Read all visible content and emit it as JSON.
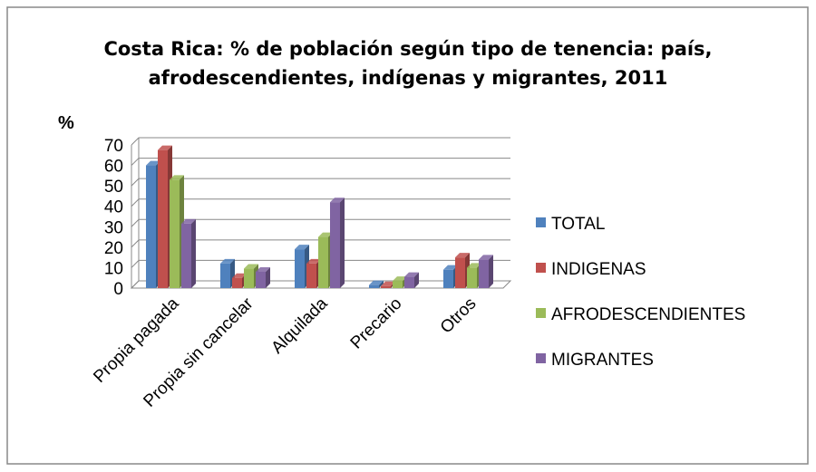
{
  "chart_data": {
    "type": "bar",
    "title": "Costa Rica: % de población según tipo de tenencia: país, afrodescendientes, indígenas y migrantes, 2011",
    "y_label": "%",
    "categories": [
      "Propia pagada",
      "Propia sin cancelar",
      "Alquilada",
      "Precario",
      "Otros"
    ],
    "series": [
      {
        "name": "TOTAL",
        "color": "#4f81bd",
        "values": [
          60,
          12,
          19,
          1.5,
          9
        ]
      },
      {
        "name": "INDIGENAS",
        "color": "#c0504d",
        "values": [
          67.5,
          5,
          12,
          1,
          15
        ]
      },
      {
        "name": "AFRODESCENDIENTES",
        "color": "#9bbb59",
        "values": [
          53,
          9.5,
          25,
          3.5,
          10
        ]
      },
      {
        "name": "MIGRANTES",
        "color": "#8064a2",
        "values": [
          31.5,
          8,
          42,
          5.5,
          14
        ]
      }
    ],
    "ylim": [
      0,
      70
    ],
    "yticks": [
      0,
      10,
      20,
      30,
      40,
      50,
      60,
      70
    ],
    "grid": true,
    "legend": "right"
  }
}
